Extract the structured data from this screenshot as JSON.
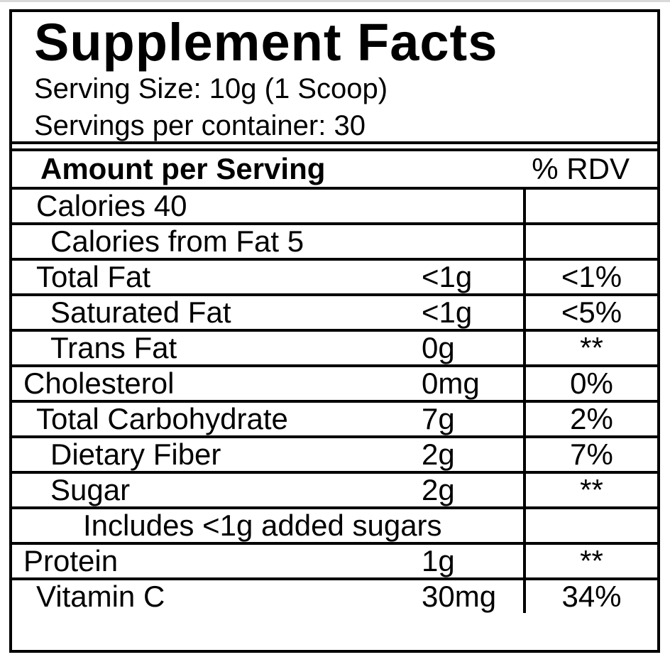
{
  "window": {
    "top_edge_color": "#d9d9d9"
  },
  "colors": {
    "border": "#000000",
    "text": "#000000",
    "background": "#ffffff"
  },
  "label": {
    "title": "Supplement Facts",
    "serving_size": "Serving Size: 10g (1 Scoop)",
    "servings_per_container": "Servings per container: 30",
    "header": {
      "amount_column": "Amount per Serving",
      "rdv_column": "% RDV"
    },
    "rows": [
      {
        "name": "Calories 40",
        "amount": "",
        "rdv": "",
        "indent": 1
      },
      {
        "name": "Calories from Fat 5",
        "amount": "",
        "rdv": "",
        "indent": 2
      },
      {
        "name": "Total Fat",
        "amount": "<1g",
        "rdv": "<1%",
        "indent": 1
      },
      {
        "name": "Saturated Fat",
        "amount": "<1g",
        "rdv": "<5%",
        "indent": 2
      },
      {
        "name": "Trans Fat",
        "amount": "0g",
        "rdv": "**",
        "indent": 2
      },
      {
        "name": "Cholesterol",
        "amount": "0mg",
        "rdv": "0%",
        "indent": 0
      },
      {
        "name": "Total Carbohydrate",
        "amount": "7g",
        "rdv": "2%",
        "indent": 1
      },
      {
        "name": "Dietary Fiber",
        "amount": "2g",
        "rdv": "7%",
        "indent": 2
      },
      {
        "name": "Sugar",
        "amount": "2g",
        "rdv": "**",
        "indent": 2
      },
      {
        "name": "Includes <1g added sugars",
        "amount": "",
        "rdv": "",
        "indent": 3
      },
      {
        "name": "Protein",
        "amount": "1g",
        "rdv": "**",
        "indent": 0
      },
      {
        "name": "Vitamin C",
        "amount": "30mg",
        "rdv": "34%",
        "indent": 1
      }
    ]
  }
}
